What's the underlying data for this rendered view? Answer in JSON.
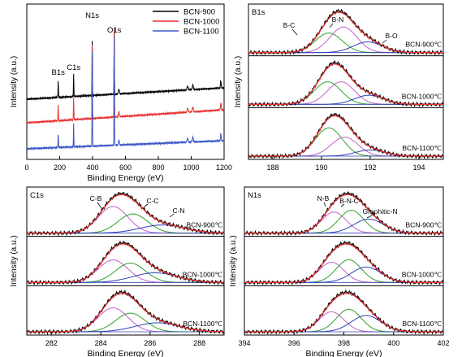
{
  "chart_data": [
    {
      "id": "survey",
      "type": "line",
      "xlabel": "Binding Energy (eV)",
      "ylabel": "Intensity (a.u.)",
      "xlim": [
        0,
        1200
      ],
      "xticks": [
        0,
        200,
        400,
        600,
        800,
        1000,
        1200
      ],
      "grid": false,
      "legend_placement": "top-right",
      "series": [
        {
          "name": "BCN-900",
          "color": "#000000"
        },
        {
          "name": "BCN-1000",
          "color": "#e8312f"
        },
        {
          "name": "BCN-1100",
          "color": "#3a56c8"
        }
      ],
      "peaks": [
        {
          "label": "B1s",
          "x": 191
        },
        {
          "label": "C1s",
          "x": 285
        },
        {
          "label": "N1s",
          "x": 398
        },
        {
          "label": "O1s",
          "x": 532
        }
      ]
    },
    {
      "id": "b1s",
      "type": "line",
      "title": "B1s",
      "xlabel": "",
      "ylabel": "Intensity (a.u.)",
      "xlim": [
        187,
        195
      ],
      "xticks": [
        188,
        190,
        192,
        194
      ],
      "grid": false,
      "samples": [
        "BCN-900℃",
        "BCN-1000℃",
        "BCN-1100℃"
      ],
      "peak_labels": [
        "B-C",
        "B-N",
        "B-O"
      ],
      "components": [
        {
          "bond": "B-C",
          "color": "#2ca02c",
          "centers": [
            190.3,
            190.25,
            190.3
          ],
          "heights": [
            0.55,
            0.62,
            0.82
          ]
        },
        {
          "bond": "B-N",
          "color": "#c060c8",
          "centers": [
            190.9,
            190.8,
            190.95
          ],
          "heights": [
            0.72,
            0.62,
            0.55
          ]
        },
        {
          "bond": "B-O",
          "color": "#3040b8",
          "centers": [
            191.9,
            191.95,
            192.0
          ],
          "heights": [
            0.3,
            0.25,
            0.18
          ]
        }
      ]
    },
    {
      "id": "c1s",
      "type": "line",
      "title": "C1s",
      "xlabel": "Binding Energy (eV)",
      "ylabel": "Intensity (a.u.)",
      "xlim": [
        281,
        289
      ],
      "xticks": [
        282,
        284,
        286,
        288
      ],
      "grid": false,
      "samples": [
        "BCN-900℃",
        "BCN-1000℃",
        "BCN-1100℃"
      ],
      "peak_labels": [
        "C-B",
        "C-C",
        "C-N"
      ],
      "components": [
        {
          "bond": "C-B",
          "color": "#c060c8",
          "centers": [
            284.5,
            284.5,
            284.5
          ],
          "heights": [
            0.72,
            0.7,
            0.75
          ]
        },
        {
          "bond": "C-C",
          "color": "#2ca02c",
          "centers": [
            285.3,
            285.2,
            285.2
          ],
          "heights": [
            0.52,
            0.6,
            0.58
          ]
        },
        {
          "bond": "C-N",
          "color": "#3040b8",
          "centers": [
            286.5,
            286.2,
            286.3
          ],
          "heights": [
            0.22,
            0.3,
            0.28
          ]
        }
      ]
    },
    {
      "id": "n1s",
      "type": "line",
      "title": "N1s",
      "xlabel": "Binding Energy (eV)",
      "ylabel": "Intensity (a.u.)",
      "xlim": [
        394,
        402
      ],
      "xticks": [
        394,
        396,
        398,
        400,
        402
      ],
      "grid": false,
      "samples": [
        "BCN-900℃",
        "BCN-1000℃",
        "BCN-1100℃"
      ],
      "peak_labels": [
        "N-B",
        "B-N-C",
        "Graphitic-N"
      ],
      "components": [
        {
          "bond": "N-B",
          "color": "#c060c8",
          "centers": [
            397.6,
            397.5,
            397.5
          ],
          "heights": [
            0.6,
            0.55,
            0.55
          ]
        },
        {
          "bond": "B-N-C",
          "color": "#2ca02c",
          "centers": [
            398.3,
            398.2,
            398.2
          ],
          "heights": [
            0.65,
            0.62,
            0.62
          ]
        },
        {
          "bond": "Graphitic-N",
          "color": "#3040b8",
          "centers": [
            399.0,
            398.9,
            398.9
          ],
          "heights": [
            0.4,
            0.42,
            0.45
          ]
        }
      ]
    }
  ]
}
